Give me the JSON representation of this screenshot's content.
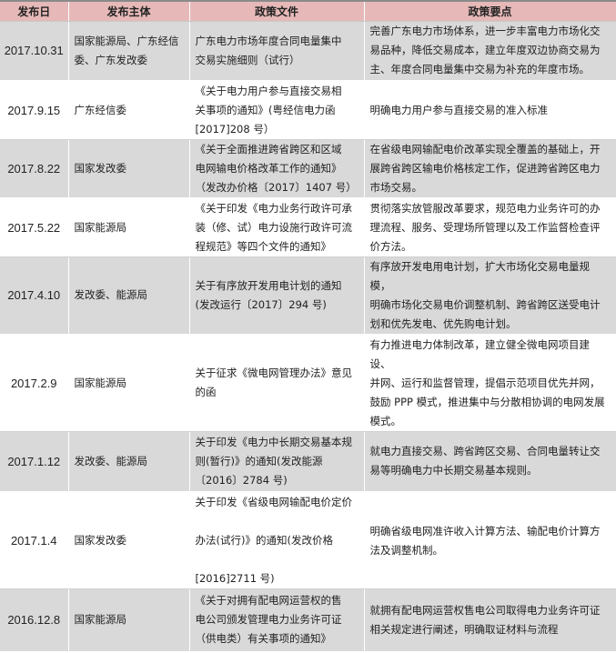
{
  "header": {
    "date": "发布日",
    "issuer": "发布主体",
    "document": "政策文件",
    "points": "政策要点"
  },
  "colors": {
    "header_bg": "#e6b9b8",
    "shaded_row": "#d9d9d9"
  },
  "rows": [
    {
      "date": "2017.10.31",
      "issuer": "国家能源局、广东经信\n委、广东发改委",
      "document": "广东电力市场年度合同电量集中\n交易实施细则（试行）",
      "points": "完善广东电力市场体系，进一步丰富电力市场化交\n易品种，降低交易成本，建立年度双边协商交易为\n主、年度合同电量集中交易为补充的年度市场。"
    },
    {
      "date": "2017.9.15",
      "issuer": "广东经信委",
      "document": "《关于电力用户参与直接交易相\n关事项的通知》(粤经信电力函\n[2017]208 号）",
      "points": "明确电力用户参与直接交易的准入标准"
    },
    {
      "date": "2017.8.22",
      "issuer": "国家发改委",
      "document": "《关于全面推进跨省跨区和区域\n电网输电价格改革工作的通知》\n（发改办价格〔2017〕1407 号）",
      "points": "在省级电网输配电价改革实现全覆盖的基础上，开\n展跨省跨区输电价格核定工作，促进跨省跨区电力\n市场交易。"
    },
    {
      "date": "2017.5.22",
      "issuer": "国家能源局",
      "document": "《关于印发《电力业务行政许可承\n装（修、试）电力设施行政许可流\n程规范》等四个文件的通知》",
      "points": "贯彻落实放管服改革要求，规范电力业务许可的办\n理流程、服务、受理场所管理以及工作监督检查评\n价方法。"
    },
    {
      "date": "2017.4.10",
      "issuer": "发改委、能源局",
      "document": "关于有序放开发用电计划的通知\n(发改运行〔2017〕294 号)",
      "points": "有序放开发电用电计划，扩大市场化交易电量规模，\n明确市场化交易电价调整机制、跨省跨区送受电计\n划和优先发电、优先购电计划。"
    },
    {
      "date": "2017.2.9",
      "issuer": "国家能源局",
      "document": "关于征求《微电网管理办法》意见\n的函",
      "points": "有力推进电力体制改革，建立健全微电网项目建设、\n并网、运行和监督管理，提倡示范项目优先并网，\n鼓励 PPP 模式，推进集中与分散相协调的电网发展\n模式。"
    },
    {
      "date": "2017.1.12",
      "issuer": "发改委、能源局",
      "document": "关于印发《电力中长期交易基本规\n则(暂行)》的通知(发改能源\n〔2016〕2784 号)",
      "points": "就电力直接交易、跨省跨区交易、合同电量转让交\n易等明确电力中长期交易基本规则。"
    },
    {
      "date": "2017.1.4",
      "issuer": "国家发改委",
      "document": "关于印发《省级电网输配电价定价\n\n办法(试行)》的通知(发改价格\n\n[2016]2711 号)",
      "points": "明确省级电网准许收入计算方法、输配电价计算方\n法及调整机制。"
    },
    {
      "date": "2016.12.8",
      "issuer": "国家能源局",
      "document": "《关于对拥有配电网运营权的售\n电公司颁发管理电力业务许可证\n（供电类）有关事项的通知》",
      "points": "就拥有配电网运营权售电公司取得电力业务许可证\n相关规定进行阐述，明确取证材料与流程"
    }
  ]
}
